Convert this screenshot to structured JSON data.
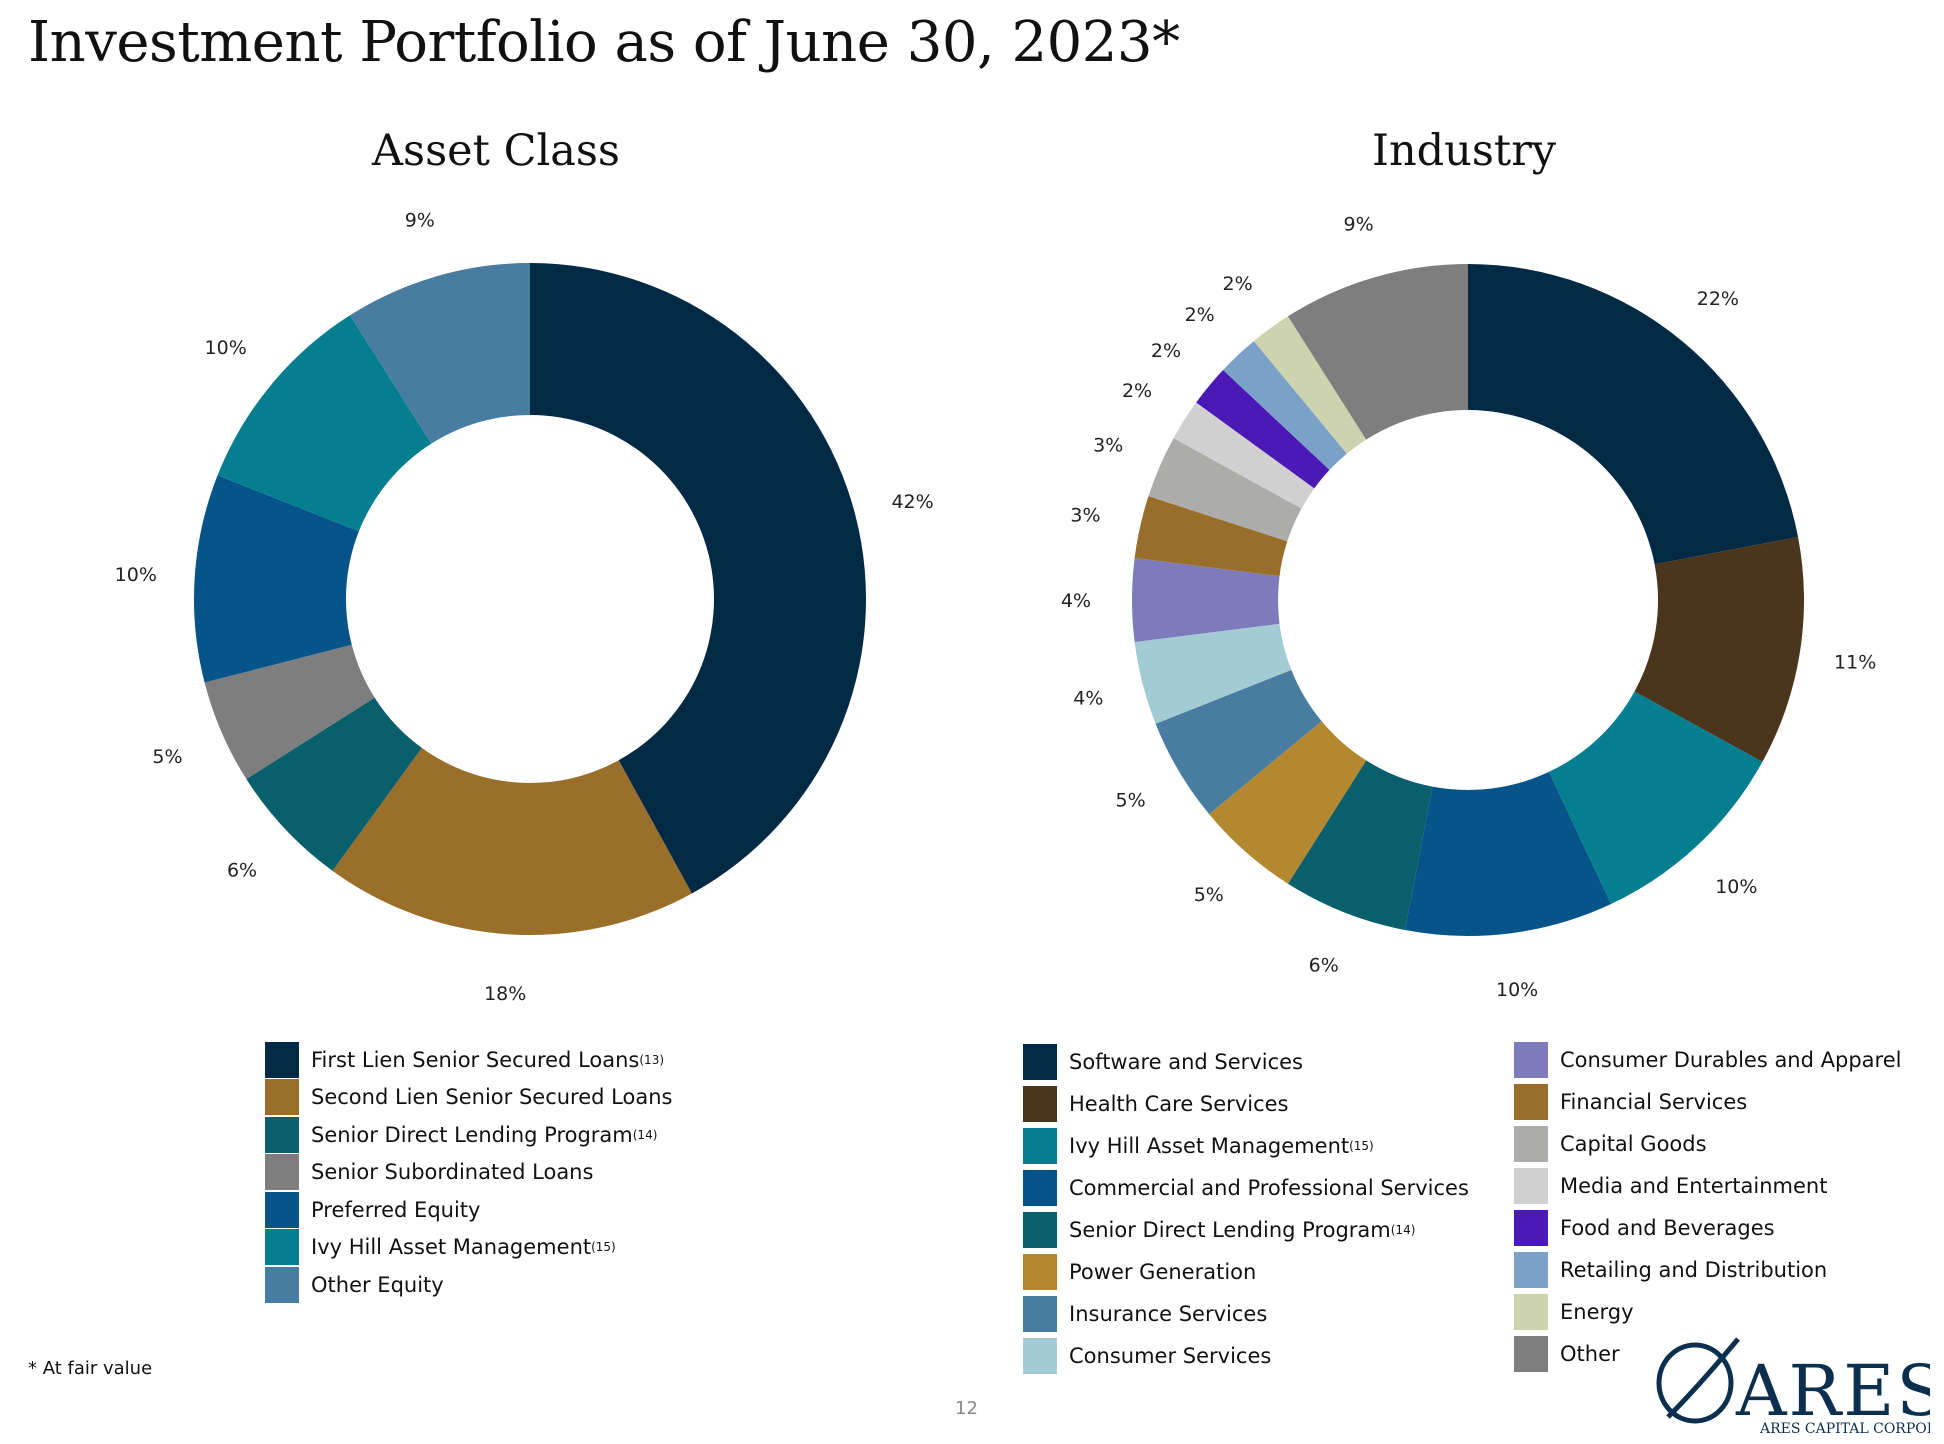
{
  "page": {
    "title": "Investment Portfolio as of June 30, 2023*",
    "footnote": "* At fair value",
    "page_number": "12",
    "logo_text": "ARES",
    "logo_subtext": "ARES CAPITAL CORPORATION"
  },
  "chart_data": [
    {
      "type": "pie",
      "variant": "donut",
      "title": "Asset Class",
      "categories": [
        "First Lien Senior Secured Loans",
        "Second Lien Senior Secured Loans",
        "Senior Direct Lending Program",
        "Senior Subordinated Loans",
        "Preferred Equity",
        "Ivy Hill Asset Management",
        "Other Equity"
      ],
      "footnote_refs": [
        "(13)",
        "",
        "(14)",
        "",
        "",
        "(15)",
        ""
      ],
      "values": [
        42,
        18,
        6,
        5,
        10,
        10,
        9
      ],
      "labels": [
        "42%",
        "18%",
        "6%",
        "5%",
        "10%",
        "10%",
        "9%"
      ],
      "colors": [
        "#032a45",
        "#9a6f2a",
        "#0a5f6c",
        "#7e7e7e",
        "#06548a",
        "#057f90",
        "#487ca0"
      ],
      "legend_position": "bottom"
    },
    {
      "type": "pie",
      "variant": "donut",
      "title": "Industry",
      "categories": [
        "Software and Services",
        "Health Care Services",
        "Ivy Hill Asset Management",
        "Commercial and Professional Services",
        "Senior Direct Lending Program",
        "Power Generation",
        "Insurance Services",
        "Consumer Services",
        "Consumer Durables and Apparel",
        "Financial Services",
        "Capital Goods",
        "Media and Entertainment",
        "Food and Beverages",
        "Retailing and Distribution",
        "Energy",
        "Other"
      ],
      "footnote_refs": [
        "",
        "",
        "(15)",
        "",
        "(14)",
        "",
        "",
        "",
        "",
        "",
        "",
        "",
        "",
        "",
        "",
        ""
      ],
      "values": [
        22,
        11,
        10,
        10,
        6,
        5,
        5,
        4,
        4,
        3,
        3,
        2,
        2,
        2,
        2,
        9
      ],
      "labels": [
        "22%",
        "11%",
        "10%",
        "10%",
        "6%",
        "5%",
        "5%",
        "4%",
        "4%",
        "3%",
        "3%",
        "2%",
        "2%",
        "2%",
        "2%",
        "9%"
      ],
      "colors": [
        "#032a45",
        "#4b351c",
        "#057f90",
        "#06548a",
        "#0a5f6c",
        "#b3882f",
        "#487ca0",
        "#a3cbd3",
        "#7d7bbc",
        "#996d2a",
        "#acacaa",
        "#d0d0d0",
        "#4b19b5",
        "#7ca1c9",
        "#ccd3ad",
        "#7e7e7e"
      ],
      "legend_position": "bottom"
    }
  ]
}
